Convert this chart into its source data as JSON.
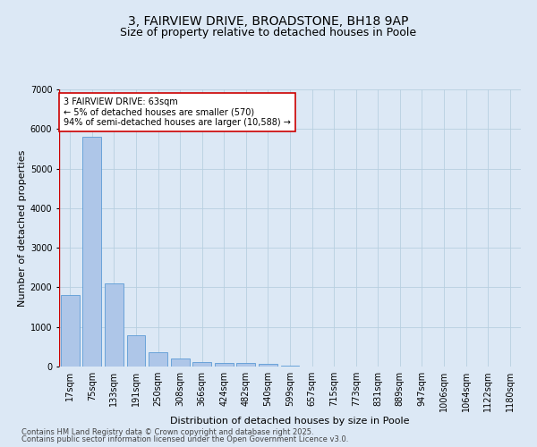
{
  "title_line1": "3, FAIRVIEW DRIVE, BROADSTONE, BH18 9AP",
  "title_line2": "Size of property relative to detached houses in Poole",
  "xlabel": "Distribution of detached houses by size in Poole",
  "ylabel": "Number of detached properties",
  "categories": [
    "17sqm",
    "75sqm",
    "133sqm",
    "191sqm",
    "250sqm",
    "308sqm",
    "366sqm",
    "424sqm",
    "482sqm",
    "540sqm",
    "599sqm",
    "657sqm",
    "715sqm",
    "773sqm",
    "831sqm",
    "889sqm",
    "947sqm",
    "1006sqm",
    "1064sqm",
    "1122sqm",
    "1180sqm"
  ],
  "values": [
    1800,
    5800,
    2100,
    800,
    370,
    200,
    120,
    100,
    80,
    60,
    30,
    8,
    4,
    2,
    2,
    1,
    1,
    1,
    0,
    0,
    0
  ],
  "bar_color": "#aec6e8",
  "bar_edge_color": "#5b9bd5",
  "background_color": "#dce8f5",
  "grid_color": "#b8cfe0",
  "annotation_text": "3 FAIRVIEW DRIVE: 63sqm\n← 5% of detached houses are smaller (570)\n94% of semi-detached houses are larger (10,588) →",
  "annotation_box_color": "#ffffff",
  "annotation_border_color": "#cc0000",
  "ylim": [
    0,
    7000
  ],
  "yticks": [
    0,
    1000,
    2000,
    3000,
    4000,
    5000,
    6000,
    7000
  ],
  "footer_line1": "Contains HM Land Registry data © Crown copyright and database right 2025.",
  "footer_line2": "Contains public sector information licensed under the Open Government Licence v3.0.",
  "title_fontsize": 10,
  "subtitle_fontsize": 9,
  "axis_label_fontsize": 8,
  "tick_fontsize": 7,
  "annotation_fontsize": 7,
  "footer_fontsize": 6
}
